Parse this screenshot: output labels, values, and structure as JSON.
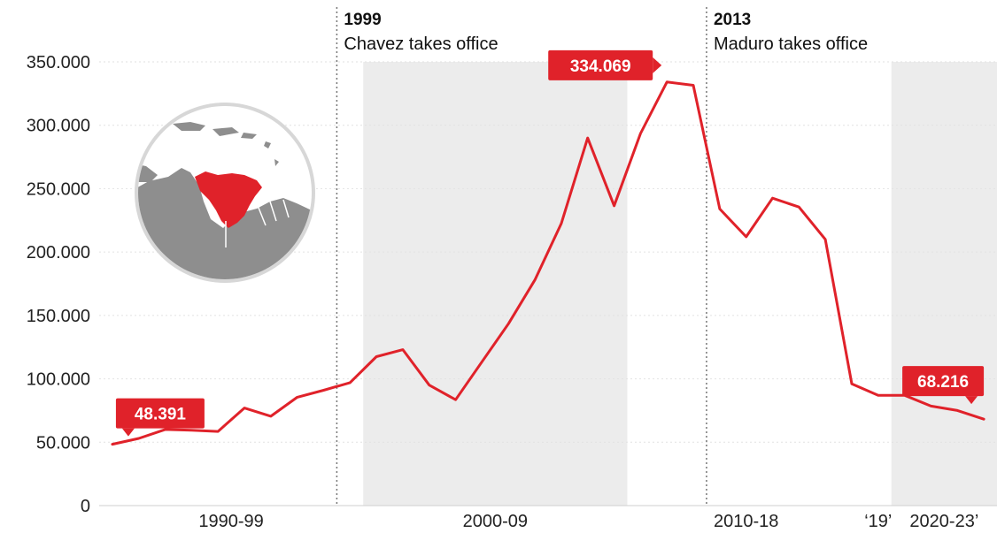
{
  "chart_data": {
    "type": "line",
    "title": "",
    "xlabel": "",
    "ylabel": "",
    "ylim": [
      0,
      350000
    ],
    "y_ticks": [
      {
        "value": 0,
        "label": "0"
      },
      {
        "value": 50000,
        "label": "50.000"
      },
      {
        "value": 100000,
        "label": "100.000"
      },
      {
        "value": 150000,
        "label": "150.000"
      },
      {
        "value": 200000,
        "label": "200.000"
      },
      {
        "value": 250000,
        "label": "250.000"
      },
      {
        "value": 300000,
        "label": "300.000"
      },
      {
        "value": 350000,
        "label": "350.000"
      }
    ],
    "x_range": [
      1989.5,
      2023.5
    ],
    "grid": true,
    "periods": [
      {
        "label": "1990-99",
        "start": 1989.5,
        "end": 1999.5,
        "shaded": false
      },
      {
        "label": "2000-09",
        "start": 1999.5,
        "end": 2009.5,
        "shaded": true
      },
      {
        "label": "2010-18",
        "start": 2009.5,
        "end": 2018.5,
        "shaded": false
      },
      {
        "label": "‘19’",
        "start": 2018.5,
        "end": 2019.5,
        "shaded": false
      },
      {
        "label": "2020-23’",
        "start": 2019.5,
        "end": 2023.5,
        "shaded": true
      }
    ],
    "events": [
      {
        "x": 1998.5,
        "year": "1999",
        "text": "Chavez takes office"
      },
      {
        "x": 2012.5,
        "year": "2013",
        "text": "Maduro takes office"
      }
    ],
    "series": [
      {
        "color": "#e0222a",
        "x": [
          1990,
          1991,
          1992,
          1993,
          1994,
          1995,
          1996,
          1997,
          1998,
          1999,
          2000,
          2001,
          2002,
          2003,
          2004,
          2005,
          2006,
          2007,
          2008,
          2009,
          2010,
          2011,
          2012,
          2013,
          2014,
          2015,
          2016,
          2017,
          2018,
          2019,
          2020,
          2021,
          2022,
          2023
        ],
        "y": [
          48391,
          53000,
          60000,
          59500,
          58500,
          77000,
          70500,
          85500,
          91000,
          97000,
          117500,
          123000,
          95000,
          83500,
          113500,
          143500,
          178000,
          222500,
          290000,
          236500,
          293500,
          334069,
          331500,
          234000,
          212000,
          242500,
          235500,
          210000,
          96000,
          87000,
          87000,
          78500,
          75000,
          68216
        ]
      }
    ],
    "callouts": [
      {
        "label": "48.391",
        "x": 1990,
        "y": 48391
      },
      {
        "label": "334.069",
        "x": 2011,
        "y": 334069
      },
      {
        "label": "68.216",
        "x": 2023,
        "y": 68216
      }
    ]
  },
  "map_inset": {
    "highlight_color": "#e0222a",
    "land_color": "#8e8e8e"
  }
}
